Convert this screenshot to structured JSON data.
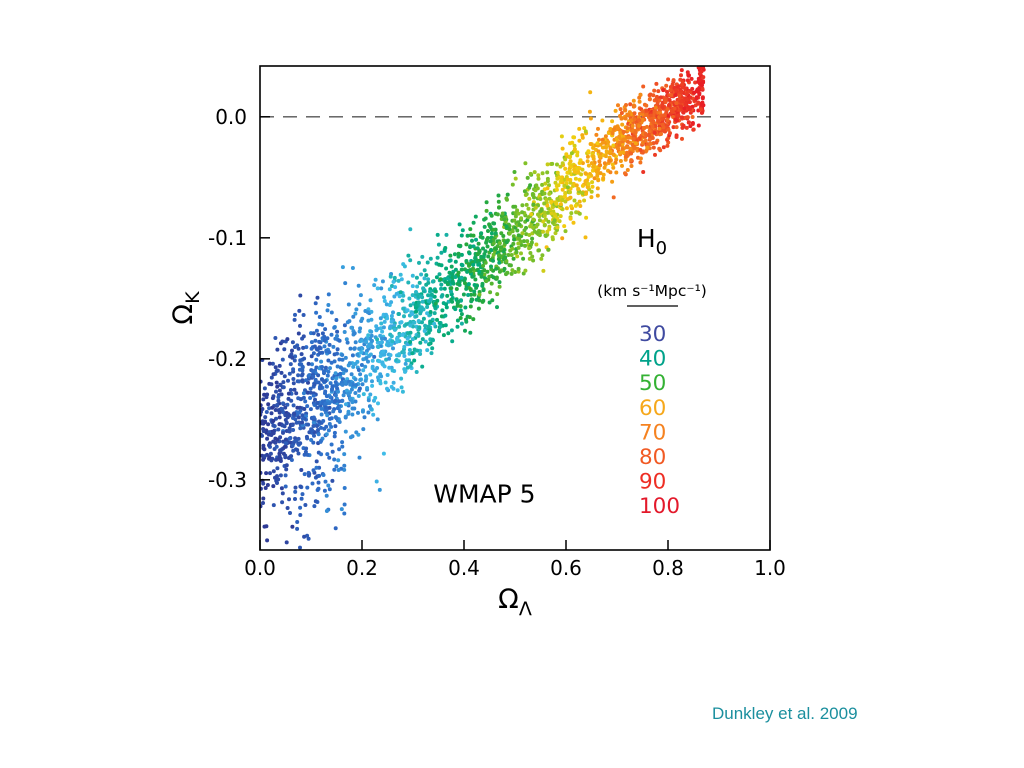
{
  "slide": {
    "background": "#ffffff"
  },
  "caption": {
    "text": "Dunkley et al. 2009",
    "color": "#1b8f9e"
  },
  "chart_data": {
    "type": "scatter",
    "title": "",
    "xlabel": {
      "symbol": "Ω",
      "subscript": "Λ"
    },
    "ylabel": {
      "symbol": "Ω",
      "subscript": "K"
    },
    "xlim": [
      0,
      1.0
    ],
    "ylim": [
      -0.358,
      0.042
    ],
    "xticks": [
      {
        "v": 0,
        "label": "0.0"
      },
      {
        "v": 0.2,
        "label": "0.2"
      },
      {
        "v": 0.4,
        "label": "0.4"
      },
      {
        "v": 0.6,
        "label": "0.6"
      },
      {
        "v": 0.8,
        "label": "0.8"
      },
      {
        "v": 1.0,
        "label": "1.0"
      }
    ],
    "yticks": [
      {
        "v": 0,
        "label": "0.0"
      },
      {
        "v": -0.1,
        "label": "-0.1"
      },
      {
        "v": -0.2,
        "label": "-0.2"
      },
      {
        "v": -0.3,
        "label": "-0.3"
      }
    ],
    "grid": false,
    "reference_line": {
      "y": 0,
      "style": "dashed",
      "color": "#555555"
    },
    "annotation": {
      "text": "WMAP 5",
      "x": 0.44,
      "y": -0.312,
      "color": "#000000"
    },
    "legend": {
      "position": "inside-right",
      "title": {
        "symbol": "H",
        "subscript": "0"
      },
      "subtitle": "(km s⁻¹Mpc⁻¹)",
      "entries": [
        {
          "label": "30",
          "h0": 30,
          "color": "#3f4aa0"
        },
        {
          "label": "40",
          "h0": 40,
          "color": "#00a28a"
        },
        {
          "label": "50",
          "h0": 50,
          "color": "#33b133"
        },
        {
          "label": "60",
          "h0": 60,
          "color": "#f6a81b"
        },
        {
          "label": "70",
          "h0": 70,
          "color": "#f58220"
        },
        {
          "label": "80",
          "h0": 80,
          "color": "#f15a24"
        },
        {
          "label": "90",
          "h0": 90,
          "color": "#ee2e24"
        },
        {
          "label": "100",
          "h0": 100,
          "color": "#e3192b"
        }
      ]
    },
    "description": "MCMC samples along the geometric degeneracy: Omega_K rises approximately linearly with Omega_Lambda from (0, -0.27) to (0.85, +0.02). Colour encodes H0 from 30 (blue, low Omega_Lambda) to 100 (red, high Omega_Lambda). Dashed line marks the flat universe Omega_K = 0.",
    "ridge": [
      [
        0.0,
        -0.268
      ],
      [
        0.1,
        -0.235
      ],
      [
        0.2,
        -0.202
      ],
      [
        0.3,
        -0.168
      ],
      [
        0.4,
        -0.132
      ],
      [
        0.5,
        -0.096
      ],
      [
        0.6,
        -0.058
      ],
      [
        0.7,
        -0.022
      ],
      [
        0.78,
        0.0
      ],
      [
        0.87,
        0.022
      ]
    ],
    "point_cloud": {
      "seed": 42,
      "n_main": 2300,
      "n_low_blob": 280,
      "n_high_cluster": 220,
      "x_max": 0.87,
      "dot_radius": 2,
      "colormap": [
        {
          "t": 0.0,
          "c": "#2e3b96"
        },
        {
          "t": 0.15,
          "c": "#2e6fca"
        },
        {
          "t": 0.3,
          "c": "#3fbde8"
        },
        {
          "t": 0.42,
          "c": "#00a97c"
        },
        {
          "t": 0.52,
          "c": "#28a838"
        },
        {
          "t": 0.64,
          "c": "#9cc823"
        },
        {
          "t": 0.7,
          "c": "#f3cf0f"
        },
        {
          "t": 0.79,
          "c": "#f59c14"
        },
        {
          "t": 0.87,
          "c": "#f26724"
        },
        {
          "t": 1.0,
          "c": "#e81e25"
        }
      ]
    }
  }
}
